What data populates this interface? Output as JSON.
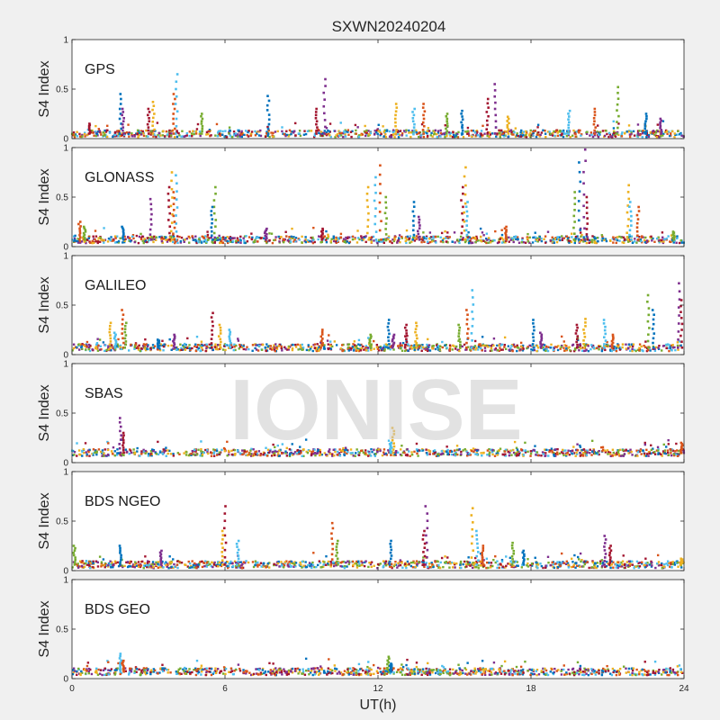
{
  "figure": {
    "title": "SXWN20240204",
    "watermark": "IONISE",
    "xlabel": "UT(h)",
    "ylabel": "S4 Index",
    "x_ticks": [
      0,
      6,
      12,
      18,
      24
    ],
    "y_ticks": [
      0,
      0.5,
      1
    ],
    "series_colors": [
      "#0072bd",
      "#d95319",
      "#edb120",
      "#7e2f8e",
      "#77ac30",
      "#4dbeee",
      "#a2142f"
    ]
  },
  "chart_data": [
    {
      "type": "scatter",
      "title": "GPS",
      "xlim": [
        0,
        24
      ],
      "ylim": [
        0,
        1
      ],
      "baseline": 0.05,
      "spikes": [
        [
          1.9,
          0.45
        ],
        [
          2.0,
          0.3
        ],
        [
          3.0,
          0.3
        ],
        [
          3.2,
          0.37
        ],
        [
          4.1,
          0.65
        ],
        [
          4.0,
          0.45
        ],
        [
          5.1,
          0.25
        ],
        [
          7.7,
          0.43
        ],
        [
          9.9,
          0.6
        ],
        [
          9.6,
          0.3
        ],
        [
          12.7,
          0.35
        ],
        [
          13.4,
          0.3
        ],
        [
          13.8,
          0.35
        ],
        [
          14.7,
          0.25
        ],
        [
          15.3,
          0.28
        ],
        [
          16.6,
          0.55
        ],
        [
          16.3,
          0.4
        ],
        [
          17.1,
          0.22
        ],
        [
          19.5,
          0.28
        ],
        [
          20.5,
          0.3
        ],
        [
          21.4,
          0.52
        ],
        [
          22.5,
          0.25
        ],
        [
          23.1,
          0.2
        ],
        [
          0.7,
          0.15
        ]
      ]
    },
    {
      "type": "scatter",
      "title": "GLONASS",
      "xlim": [
        0,
        24
      ],
      "ylim": [
        0,
        1
      ],
      "baseline": 0.07,
      "spikes": [
        [
          0.3,
          0.25
        ],
        [
          0.5,
          0.2
        ],
        [
          2.0,
          0.2
        ],
        [
          3.1,
          0.48
        ],
        [
          3.8,
          0.6
        ],
        [
          3.9,
          0.75
        ],
        [
          4.1,
          0.72
        ],
        [
          4.0,
          0.55
        ],
        [
          5.6,
          0.6
        ],
        [
          5.5,
          0.4
        ],
        [
          7.6,
          0.18
        ],
        [
          9.8,
          0.18
        ],
        [
          11.6,
          0.6
        ],
        [
          11.9,
          0.7
        ],
        [
          12.1,
          0.82
        ],
        [
          12.3,
          0.5
        ],
        [
          13.4,
          0.45
        ],
        [
          13.6,
          0.3
        ],
        [
          15.3,
          0.6
        ],
        [
          15.4,
          0.8
        ],
        [
          15.5,
          0.45
        ],
        [
          17.0,
          0.2
        ],
        [
          19.7,
          0.55
        ],
        [
          19.9,
          0.85
        ],
        [
          20.1,
          0.98
        ],
        [
          20.2,
          0.5
        ],
        [
          21.8,
          0.62
        ],
        [
          21.9,
          0.45
        ],
        [
          22.2,
          0.4
        ],
        [
          23.6,
          0.15
        ]
      ]
    },
    {
      "type": "scatter",
      "title": "GALILEO",
      "xlim": [
        0,
        24
      ],
      "ylim": [
        0,
        1
      ],
      "baseline": 0.07,
      "spikes": [
        [
          1.5,
          0.32
        ],
        [
          1.7,
          0.22
        ],
        [
          2.0,
          0.45
        ],
        [
          2.1,
          0.32
        ],
        [
          3.4,
          0.15
        ],
        [
          4.0,
          0.2
        ],
        [
          5.5,
          0.42
        ],
        [
          5.8,
          0.3
        ],
        [
          6.2,
          0.25
        ],
        [
          9.8,
          0.25
        ],
        [
          11.7,
          0.2
        ],
        [
          12.4,
          0.35
        ],
        [
          12.6,
          0.2
        ],
        [
          13.1,
          0.3
        ],
        [
          13.5,
          0.32
        ],
        [
          15.7,
          0.65
        ],
        [
          15.5,
          0.45
        ],
        [
          15.2,
          0.3
        ],
        [
          18.1,
          0.35
        ],
        [
          18.4,
          0.22
        ],
        [
          19.8,
          0.3
        ],
        [
          20.1,
          0.36
        ],
        [
          20.9,
          0.35
        ],
        [
          21.2,
          0.2
        ],
        [
          22.6,
          0.6
        ],
        [
          22.8,
          0.45
        ],
        [
          23.8,
          0.72
        ],
        [
          23.9,
          0.55
        ]
      ]
    },
    {
      "type": "scatter",
      "title": "SBAS",
      "xlim": [
        0,
        24
      ],
      "ylim": [
        0,
        1
      ],
      "baseline": 0.1,
      "spikes": [
        [
          1.9,
          0.45
        ],
        [
          2.0,
          0.3
        ],
        [
          12.6,
          0.35
        ],
        [
          12.5,
          0.2
        ],
        [
          23.9,
          0.2
        ]
      ]
    },
    {
      "type": "scatter",
      "title": "BDS NGEO",
      "xlim": [
        0,
        24
      ],
      "ylim": [
        0,
        1
      ],
      "baseline": 0.06,
      "spikes": [
        [
          0.1,
          0.25
        ],
        [
          1.9,
          0.25
        ],
        [
          3.5,
          0.2
        ],
        [
          6.0,
          0.65
        ],
        [
          5.9,
          0.4
        ],
        [
          6.5,
          0.3
        ],
        [
          10.2,
          0.48
        ],
        [
          10.4,
          0.3
        ],
        [
          12.5,
          0.3
        ],
        [
          13.9,
          0.65
        ],
        [
          13.8,
          0.4
        ],
        [
          15.7,
          0.63
        ],
        [
          15.9,
          0.4
        ],
        [
          16.1,
          0.25
        ],
        [
          17.3,
          0.28
        ],
        [
          17.7,
          0.2
        ],
        [
          20.9,
          0.35
        ],
        [
          21.1,
          0.25
        ],
        [
          23.9,
          0.12
        ]
      ]
    },
    {
      "type": "scatter",
      "title": "BDS GEO",
      "xlim": [
        0,
        24
      ],
      "ylim": [
        0,
        1
      ],
      "baseline": 0.07,
      "spikes": [
        [
          1.9,
          0.25
        ],
        [
          2.0,
          0.18
        ],
        [
          12.4,
          0.22
        ],
        [
          12.5,
          0.15
        ]
      ]
    }
  ]
}
